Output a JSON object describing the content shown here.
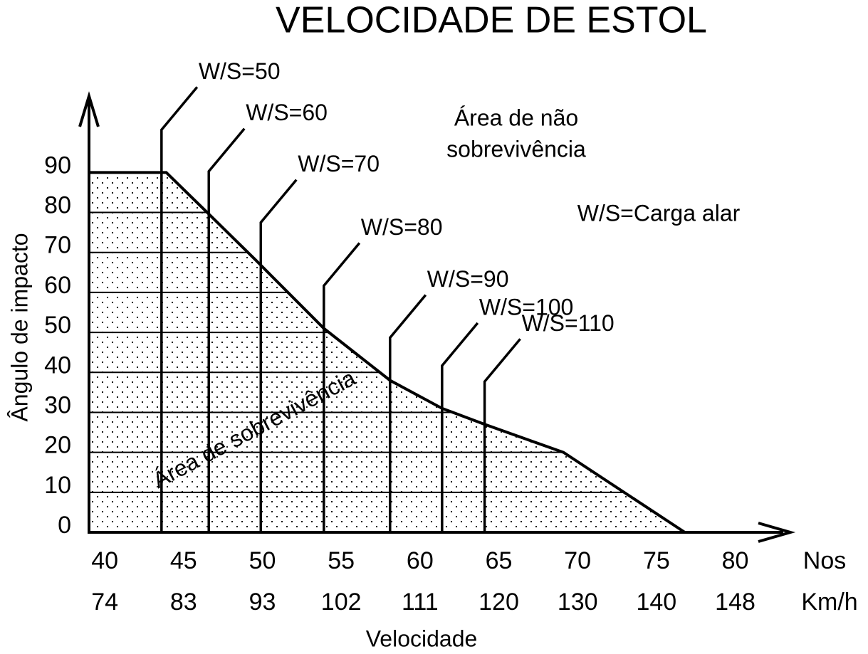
{
  "chart_data": {
    "type": "area",
    "title": "VELOCIDADE DE ESTOL",
    "xlabel": "Velocidade",
    "ylabel": "Ângulo de impacto",
    "x_unit": "Nos",
    "x2_unit": "Km/h",
    "x": [
      39,
      43.9,
      46.5,
      49.6,
      53.9,
      58.1,
      61.4,
      64.1,
      69.1,
      76.8
    ],
    "series": [
      {
        "color": "#000000",
        "values": [
          90,
          90,
          80,
          68,
          51,
          38,
          31,
          27,
          20,
          0
        ]
      }
    ],
    "xlim": [
      39,
      83.5
    ],
    "ylim": [
      0,
      110
    ],
    "xticks": [
      40,
      45,
      50,
      55,
      60,
      65,
      70,
      75,
      80
    ],
    "x2ticks": [
      74,
      83,
      93,
      102,
      111,
      120,
      130,
      140,
      148
    ],
    "yticks": [
      0,
      10,
      20,
      30,
      40,
      50,
      60,
      70,
      80,
      90
    ],
    "grid": true,
    "markers": [
      {
        "label": "W/S=50",
        "x": 43.6
      },
      {
        "label": "W/S=60",
        "x": 46.6
      },
      {
        "label": "W/S=70",
        "x": 49.9
      },
      {
        "label": "W/S=80",
        "x": 53.9
      },
      {
        "label": "W/S=90",
        "x": 58.1
      },
      {
        "label": "W/S=100",
        "x": 61.4
      },
      {
        "label": "W/S=110",
        "x": 64.1
      }
    ],
    "annotations": [
      {
        "lines": [
          "Área de não",
          "sobrevivência"
        ]
      },
      {
        "lines": [
          "W/S=Carga alar"
        ]
      },
      {
        "lines": [
          "Área de sobrevivência"
        ]
      }
    ]
  }
}
